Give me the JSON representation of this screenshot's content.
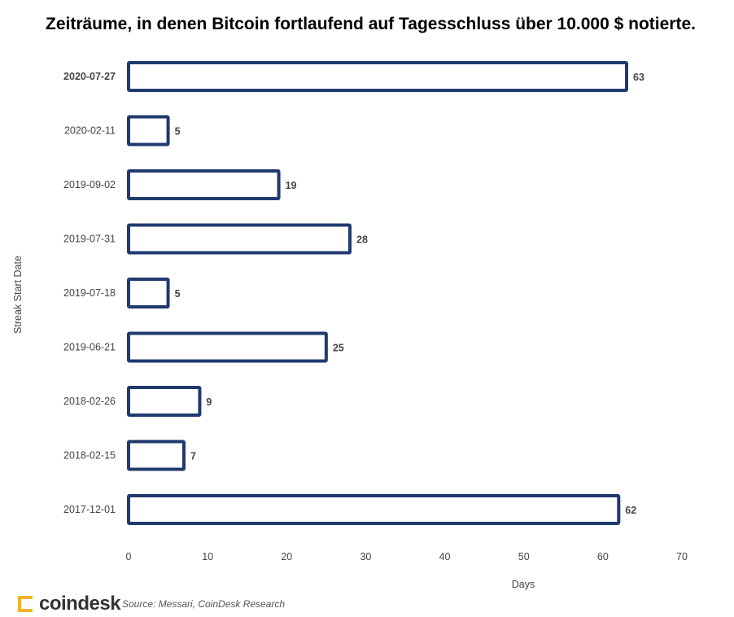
{
  "chart_data": {
    "type": "bar",
    "orientation": "horizontal",
    "title": "Zeiträume, in denen Bitcoin fortlaufend auf Tagesschluss über 10.000 $ notierte.",
    "xlabel": "Days",
    "ylabel": "Streak Start Date",
    "xlim": [
      0,
      70
    ],
    "xticks": [
      0,
      10,
      20,
      30,
      40,
      50,
      60,
      70
    ],
    "categories": [
      "2020-07-27",
      "2020-02-11",
      "2019-09-02",
      "2019-07-31",
      "2019-07-18",
      "2019-06-21",
      "2018-02-26",
      "2018-02-15",
      "2017-12-01"
    ],
    "values": [
      63,
      5,
      19,
      28,
      5,
      25,
      9,
      7,
      62
    ],
    "bar_color": "#1f3a6e",
    "grid": false,
    "legend": "none"
  },
  "footer": {
    "brand": "coindesk",
    "source": "Source: Messari, CoinDesk Research"
  }
}
